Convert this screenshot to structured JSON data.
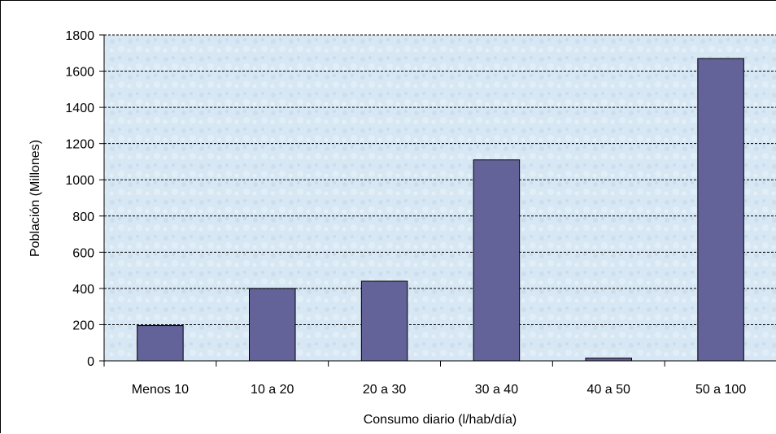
{
  "chart_data": {
    "type": "bar",
    "categories": [
      "Menos 10",
      "10 a 20",
      "20 a 30",
      "30 a 40",
      "40 a 50",
      "50 a 100"
    ],
    "values": [
      195,
      400,
      440,
      1110,
      15,
      1670
    ],
    "xlabel": "Consumo diario (l/hab/día)",
    "ylabel": "Población (Millones)",
    "ylim": [
      0,
      1800
    ],
    "yticks": [
      0,
      200,
      400,
      600,
      800,
      1000,
      1200,
      1400,
      1600,
      1800
    ],
    "grid": true,
    "legend": "none",
    "colors": {
      "bar": "#63639a",
      "bar_border": "#000000",
      "plot_background": "#d9e8f4",
      "gridline": "#000000"
    }
  }
}
